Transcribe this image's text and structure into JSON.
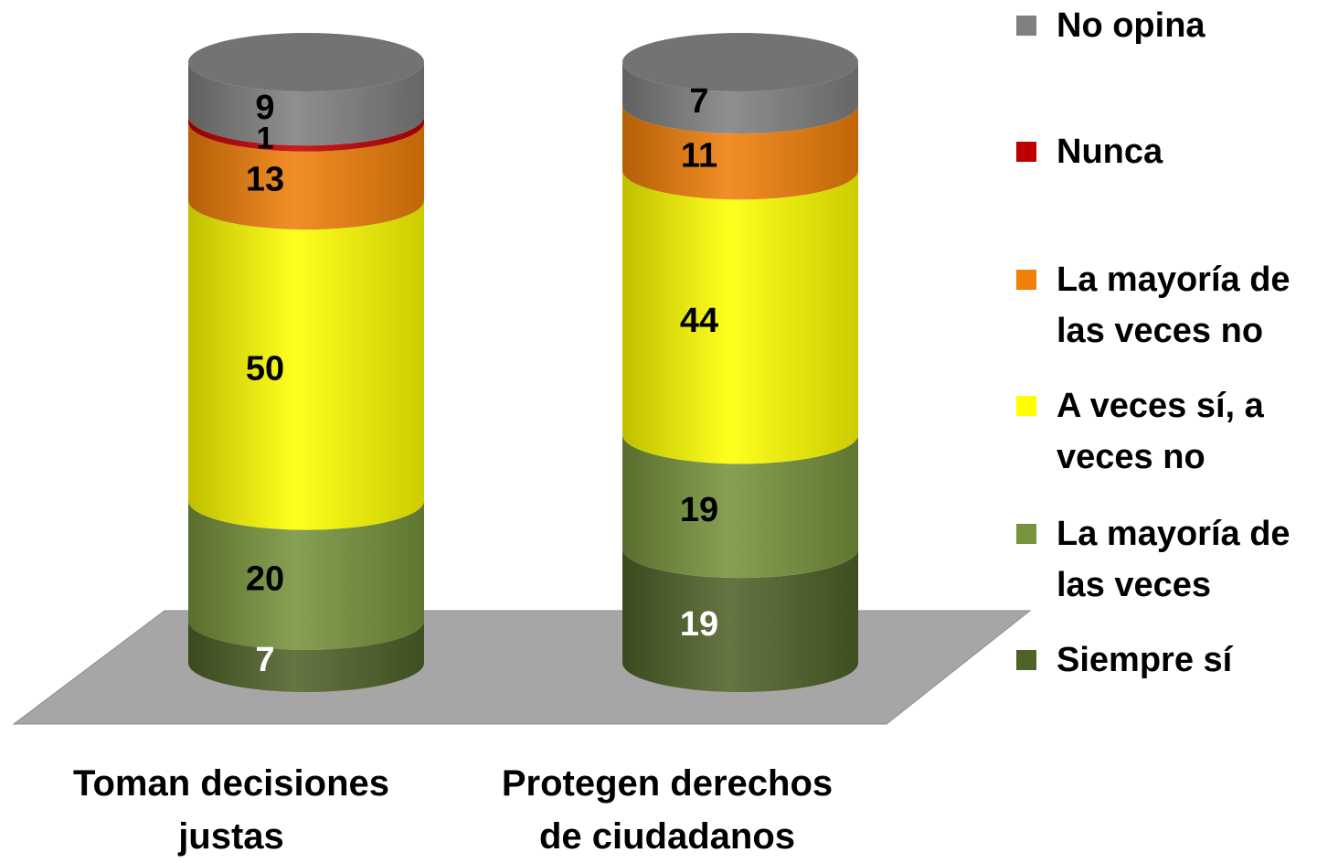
{
  "chart_data": {
    "type": "bar",
    "stacked": true,
    "style": "3d-cylinder",
    "categories": [
      "Toman decisiones\njustas",
      "Protegen derechos\nde ciudadanos"
    ],
    "ylim": [
      0,
      100
    ],
    "legend_position": "right",
    "series": [
      {
        "name": "Siempre sí",
        "color": "#4f6228",
        "label_color": "#ffffff",
        "values": [
          7,
          19
        ]
      },
      {
        "name": "La mayoría de\nlas veces",
        "color": "#77933c",
        "label_color": "#000000",
        "values": [
          20,
          19
        ]
      },
      {
        "name": " A veces sí, a\nveces no",
        "color": "#ffff00",
        "label_color": "#000000",
        "values": [
          50,
          44
        ]
      },
      {
        "name": "La mayoría de\nlas veces no",
        "color": "#f07f09",
        "label_color": "#000000",
        "values": [
          13,
          11
        ]
      },
      {
        "name": "Nunca",
        "color": "#c00000",
        "label_color": "#000000",
        "values": [
          1,
          0
        ]
      },
      {
        "name": "No opina",
        "color": "#808080",
        "label_color": "#000000",
        "values": [
          9,
          7
        ]
      }
    ],
    "floor_color": "#a6a6a6"
  }
}
